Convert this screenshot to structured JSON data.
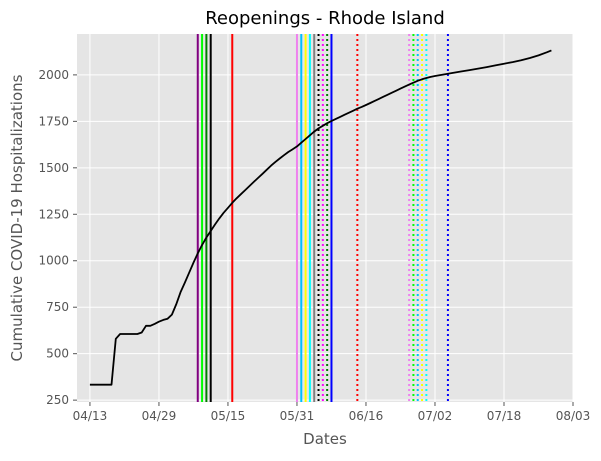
{
  "chart_data": {
    "type": "line",
    "title": "Reopenings - Rhode Island",
    "xlabel": "Dates",
    "ylabel": "Cumulative COVID-19 Hospitalizations",
    "xlim": [
      "2020-04-10",
      "2020-08-03"
    ],
    "ylim": [
      240,
      2220
    ],
    "x_tick_labels": [
      "04/13",
      "04/29",
      "05/15",
      "05/31",
      "06/16",
      "07/02",
      "07/18",
      "08/03"
    ],
    "y_tick_labels": [
      "250",
      "500",
      "750",
      "1000",
      "1250",
      "1500",
      "1750",
      "2000"
    ],
    "grid": true,
    "series": [
      {
        "color": "#000000",
        "points": [
          [
            "2020-04-13",
            333
          ],
          [
            "2020-04-14",
            333
          ],
          [
            "2020-04-15",
            333
          ],
          [
            "2020-04-16",
            333
          ],
          [
            "2020-04-17",
            333
          ],
          [
            "2020-04-18",
            333
          ],
          [
            "2020-04-19",
            580
          ],
          [
            "2020-04-20",
            606
          ],
          [
            "2020-04-21",
            606
          ],
          [
            "2020-04-22",
            606
          ],
          [
            "2020-04-23",
            606
          ],
          [
            "2020-04-24",
            606
          ],
          [
            "2020-04-25",
            614
          ],
          [
            "2020-04-26",
            650
          ],
          [
            "2020-04-27",
            650
          ],
          [
            "2020-04-28",
            660
          ],
          [
            "2020-04-29",
            672
          ],
          [
            "2020-04-30",
            682
          ],
          [
            "2020-05-01",
            688
          ],
          [
            "2020-05-02",
            710
          ],
          [
            "2020-05-03",
            765
          ],
          [
            "2020-05-04",
            830
          ],
          [
            "2020-05-05",
            882
          ],
          [
            "2020-05-06",
            935
          ],
          [
            "2020-05-07",
            990
          ],
          [
            "2020-05-08",
            1040
          ],
          [
            "2020-05-09",
            1085
          ],
          [
            "2020-05-10",
            1125
          ],
          [
            "2020-05-11",
            1160
          ],
          [
            "2020-05-12",
            1195
          ],
          [
            "2020-05-13",
            1228
          ],
          [
            "2020-05-14",
            1258
          ],
          [
            "2020-05-15",
            1285
          ],
          [
            "2020-05-16",
            1312
          ],
          [
            "2020-05-17",
            1336
          ],
          [
            "2020-05-18",
            1358
          ],
          [
            "2020-05-19",
            1380
          ],
          [
            "2020-05-20",
            1402
          ],
          [
            "2020-05-21",
            1424
          ],
          [
            "2020-05-22",
            1446
          ],
          [
            "2020-05-23",
            1468
          ],
          [
            "2020-05-24",
            1490
          ],
          [
            "2020-05-25",
            1512
          ],
          [
            "2020-05-26",
            1532
          ],
          [
            "2020-05-27",
            1550
          ],
          [
            "2020-05-28",
            1568
          ],
          [
            "2020-05-29",
            1585
          ],
          [
            "2020-05-30",
            1600
          ],
          [
            "2020-05-31",
            1615
          ],
          [
            "2020-06-01",
            1635
          ],
          [
            "2020-06-02",
            1655
          ],
          [
            "2020-06-03",
            1675
          ],
          [
            "2020-06-04",
            1695
          ],
          [
            "2020-06-05",
            1712
          ],
          [
            "2020-06-06",
            1726
          ],
          [
            "2020-06-07",
            1740
          ],
          [
            "2020-06-08",
            1752
          ],
          [
            "2020-06-09",
            1763
          ],
          [
            "2020-06-10",
            1774
          ],
          [
            "2020-06-11",
            1785
          ],
          [
            "2020-06-12",
            1796
          ],
          [
            "2020-06-13",
            1807
          ],
          [
            "2020-06-14",
            1818
          ],
          [
            "2020-06-15",
            1828
          ],
          [
            "2020-06-16",
            1838
          ],
          [
            "2020-06-17",
            1849
          ],
          [
            "2020-06-18",
            1860
          ],
          [
            "2020-06-19",
            1871
          ],
          [
            "2020-06-20",
            1882
          ],
          [
            "2020-06-21",
            1893
          ],
          [
            "2020-06-22",
            1904
          ],
          [
            "2020-06-23",
            1915
          ],
          [
            "2020-06-24",
            1926
          ],
          [
            "2020-06-25",
            1937
          ],
          [
            "2020-06-26",
            1948
          ],
          [
            "2020-06-27",
            1958
          ],
          [
            "2020-06-28",
            1968
          ],
          [
            "2020-06-29",
            1976
          ],
          [
            "2020-06-30",
            1983
          ],
          [
            "2020-07-01",
            1989
          ],
          [
            "2020-07-02",
            1994
          ],
          [
            "2020-07-04",
            2002
          ],
          [
            "2020-07-06",
            2010
          ],
          [
            "2020-07-08",
            2018
          ],
          [
            "2020-07-10",
            2026
          ],
          [
            "2020-07-12",
            2034
          ],
          [
            "2020-07-14",
            2042
          ],
          [
            "2020-07-16",
            2051
          ],
          [
            "2020-07-18",
            2060
          ],
          [
            "2020-07-20",
            2069
          ],
          [
            "2020-07-22",
            2079
          ],
          [
            "2020-07-24",
            2091
          ],
          [
            "2020-07-26",
            2105
          ],
          [
            "2020-07-28",
            2122
          ],
          [
            "2020-07-29",
            2132
          ]
        ]
      }
    ],
    "vertical_lines": [
      {
        "x": "2020-05-08",
        "color": "#800080",
        "style": "solid"
      },
      {
        "x": "2020-05-09",
        "color": "#00ff00",
        "style": "solid"
      },
      {
        "x": "2020-05-10",
        "color": "#008000",
        "style": "solid"
      },
      {
        "x": "2020-05-11",
        "color": "#000000",
        "style": "solid"
      },
      {
        "x": "2020-05-16",
        "color": "#ff0000",
        "style": "solid"
      },
      {
        "x": "2020-05-31",
        "color": "#ee82ee",
        "style": "solid"
      },
      {
        "x": "2020-06-01",
        "color": "#00bfff",
        "style": "solid"
      },
      {
        "x": "2020-06-02",
        "color": "#ffff00",
        "style": "solid"
      },
      {
        "x": "2020-06-03",
        "color": "#00ffff",
        "style": "solid"
      },
      {
        "x": "2020-06-04",
        "color": "#808080",
        "style": "solid"
      },
      {
        "x": "2020-06-05",
        "color": "#000000",
        "style": "dotted"
      },
      {
        "x": "2020-06-06",
        "color": "#ff00ff",
        "style": "dotted"
      },
      {
        "x": "2020-06-07",
        "color": "#008000",
        "style": "dotted"
      },
      {
        "x": "2020-06-08",
        "color": "#0000ff",
        "style": "solid"
      },
      {
        "x": "2020-06-14",
        "color": "#ff0000",
        "style": "dotted"
      },
      {
        "x": "2020-06-26",
        "color": "#ee82ee",
        "style": "dotted"
      },
      {
        "x": "2020-06-27",
        "color": "#00ff00",
        "style": "dotted"
      },
      {
        "x": "2020-06-28",
        "color": "#00bfff",
        "style": "dotted"
      },
      {
        "x": "2020-06-29",
        "color": "#ffff00",
        "style": "dotted"
      },
      {
        "x": "2020-06-30",
        "color": "#00ffff",
        "style": "dotted"
      },
      {
        "x": "2020-07-05",
        "color": "#0000ff",
        "style": "dotted"
      }
    ]
  }
}
